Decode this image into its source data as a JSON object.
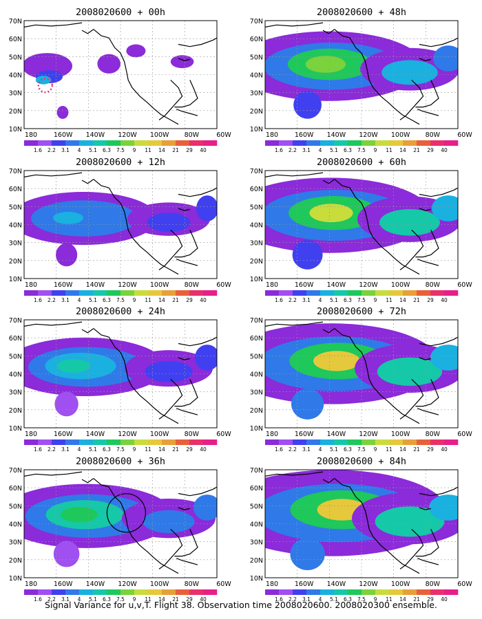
{
  "panels": [
    {
      "title": "2008020600 + 00h",
      "lead_hours": 0
    },
    {
      "title": "2008020600 + 48h",
      "lead_hours": 48
    },
    {
      "title": "2008020600 + 12h",
      "lead_hours": 12
    },
    {
      "title": "2008020600 + 60h",
      "lead_hours": 60
    },
    {
      "title": "2008020600 + 24h",
      "lead_hours": 24
    },
    {
      "title": "2008020600 + 72h",
      "lead_hours": 72
    },
    {
      "title": "2008020600 + 36h",
      "lead_hours": 36
    },
    {
      "title": "2008020600 + 84h",
      "lead_hours": 84
    }
  ],
  "axes": {
    "lat_labels": [
      "70N",
      "60N",
      "50N",
      "40N",
      "30N",
      "20N",
      "10N"
    ],
    "lon_labels": [
      "180",
      "160W",
      "140W",
      "120W",
      "100W",
      "80W",
      "60W"
    ]
  },
  "colorbar": {
    "labels": [
      "1.6",
      "2.2",
      "3.1",
      "4",
      "5.1",
      "6.3",
      "7.5",
      "9",
      "11",
      "14",
      "21",
      "29",
      "40"
    ],
    "colors": [
      "#8b2bd9",
      "#a04ff0",
      "#4040f0",
      "#2f7ae8",
      "#1ab0e0",
      "#15c8a8",
      "#1ec85a",
      "#7ad23c",
      "#c8dc3c",
      "#e6c83c",
      "#e89f3a",
      "#e8603a",
      "#e8306a",
      "#e81e8a"
    ]
  },
  "caption": "Signal Variance for u,v,T. Flight 38. Observation time 2008020600. 2008020300 ensemble."
}
